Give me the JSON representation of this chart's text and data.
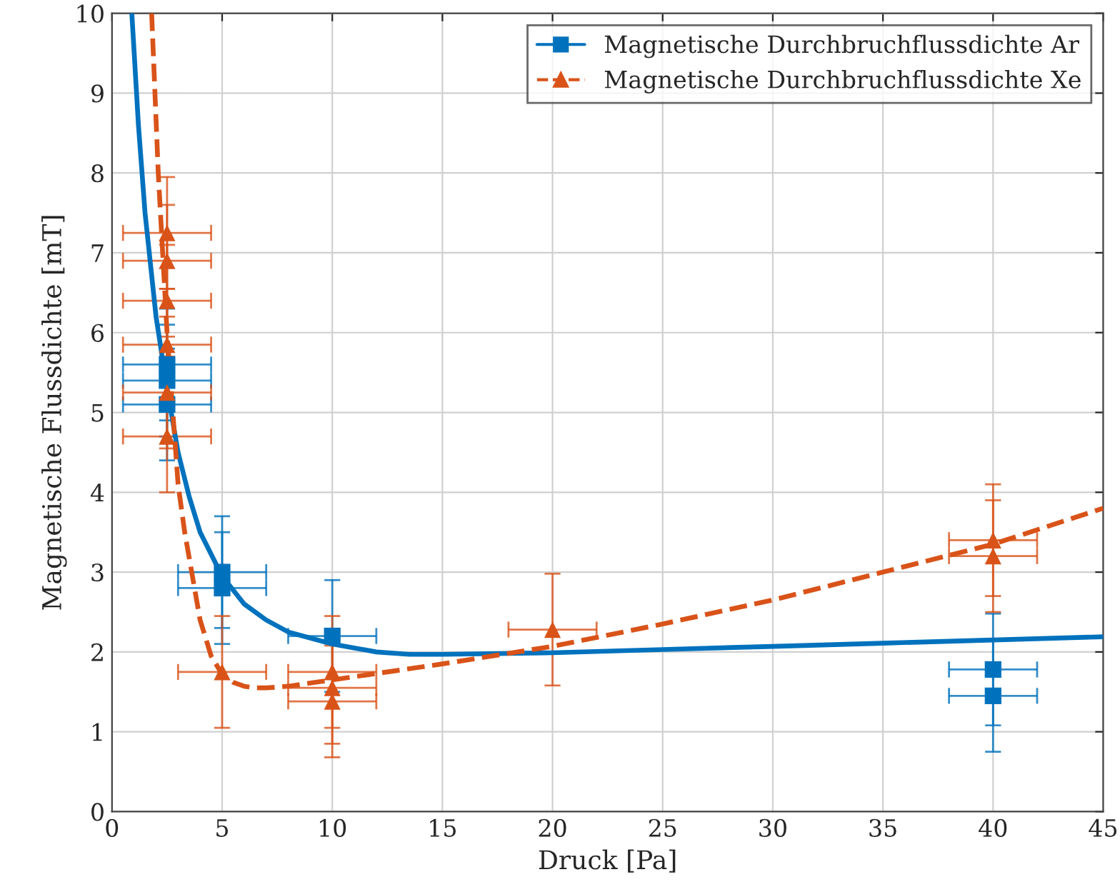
{
  "chart_data": {
    "type": "scatter",
    "xlabel": "Druck [Pa]",
    "ylabel": "Magnetische Flussdichte [mT]",
    "xlim": [
      0,
      45
    ],
    "ylim": [
      0,
      10
    ],
    "xticks": [
      0,
      5,
      10,
      15,
      20,
      25,
      30,
      35,
      40,
      45
    ],
    "yticks": [
      0,
      1,
      2,
      3,
      4,
      5,
      6,
      7,
      8,
      9,
      10
    ],
    "grid": true,
    "legend": "top right",
    "series": [
      {
        "name": "Magnetische Durchbruchflussdichte Ar",
        "color": "#0072bd",
        "marker": "square",
        "line_style": "solid",
        "x": [
          2.5,
          2.5,
          2.5,
          5,
          5,
          10,
          40,
          40
        ],
        "values": [
          5.1,
          5.4,
          5.6,
          3.0,
          2.8,
          2.2,
          1.78,
          1.45
        ],
        "errors": [
          0.7,
          0.7,
          0.7,
          0.7,
          0.7,
          0.7,
          0.7,
          0.7
        ],
        "xerrors": [
          2,
          2,
          2,
          2,
          2,
          2,
          2,
          2
        ]
      },
      {
        "name": "Magnetische Durchbruchflussdichte Xe",
        "color": "#d95319",
        "marker": "triangle",
        "line_style": "dashed",
        "x": [
          2.5,
          2.5,
          2.5,
          2.5,
          2.5,
          2.5,
          5,
          10,
          10,
          10,
          20,
          40,
          40
        ],
        "values": [
          7.25,
          6.9,
          6.4,
          5.85,
          5.25,
          4.7,
          1.75,
          1.75,
          1.55,
          1.38,
          2.28,
          3.4,
          3.2
        ],
        "errors": [
          0.7,
          0.7,
          0.7,
          0.7,
          0.7,
          0.7,
          0.7,
          0.7,
          0.7,
          0.7,
          0.7,
          0.7,
          0.7
        ],
        "xerrors": [
          2,
          2,
          2,
          2,
          2,
          2,
          2,
          2,
          2,
          2,
          2,
          2,
          2
        ]
      },
      {
        "type": "line",
        "color": "#0072bd",
        "line_style": "solid",
        "x": [
          0.9,
          1.2,
          1.5,
          2,
          2.5,
          3,
          3.5,
          4,
          5,
          6,
          7,
          8,
          10,
          12,
          13.5,
          15,
          20,
          25,
          30,
          35,
          40,
          45
        ],
        "values": [
          10,
          8.6,
          7.5,
          6.2,
          5.3,
          4.5,
          3.95,
          3.5,
          2.95,
          2.6,
          2.4,
          2.25,
          2.1,
          2.0,
          1.97,
          1.97,
          1.99,
          2.03,
          2.07,
          2.11,
          2.15,
          2.19
        ]
      },
      {
        "type": "line",
        "color": "#d95319",
        "line_style": "dashed",
        "x": [
          1.8,
          2.1,
          2.5,
          3,
          3.3,
          4,
          4.5,
          5,
          5.5,
          6,
          6.5,
          7,
          8,
          10,
          13,
          15,
          20,
          23.4,
          25,
          30,
          35,
          40,
          45
        ],
        "values": [
          10,
          8.0,
          6.0,
          4.1,
          3.5,
          2.4,
          1.95,
          1.72,
          1.62,
          1.57,
          1.55,
          1.55,
          1.57,
          1.65,
          1.77,
          1.85,
          2.07,
          2.26,
          2.35,
          2.65,
          3.0,
          3.35,
          3.8
        ]
      }
    ]
  }
}
